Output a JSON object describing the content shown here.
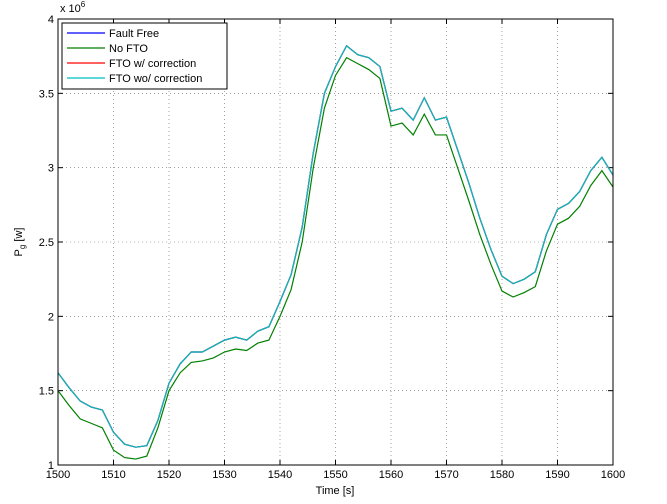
{
  "chart_data": {
    "type": "line",
    "xlabel": "Time [s]",
    "ylabel": {
      "main": "P",
      "sub": "g",
      "unit": " [w]"
    },
    "y_multiplier": {
      "base": "x 10",
      "exponent": "6"
    },
    "x": [
      1500,
      1502,
      1504,
      1506,
      1508,
      1510,
      1512,
      1514,
      1516,
      1518,
      1520,
      1522,
      1524,
      1526,
      1528,
      1530,
      1532,
      1534,
      1536,
      1538,
      1540,
      1542,
      1544,
      1546,
      1548,
      1550,
      1552,
      1554,
      1556,
      1558,
      1560,
      1562,
      1564,
      1566,
      1568,
      1570,
      1572,
      1574,
      1576,
      1578,
      1580,
      1582,
      1584,
      1586,
      1588,
      1590,
      1592,
      1594,
      1596,
      1598,
      1600
    ],
    "series": [
      {
        "name": "Fault Free",
        "color": "#0000ff",
        "values": [
          1.62,
          1.52,
          1.43,
          1.39,
          1.37,
          1.22,
          1.14,
          1.12,
          1.13,
          1.3,
          1.55,
          1.68,
          1.76,
          1.76,
          1.8,
          1.84,
          1.86,
          1.84,
          1.9,
          1.93,
          2.1,
          2.28,
          2.6,
          3.1,
          3.5,
          3.68,
          3.82,
          3.76,
          3.74,
          3.68,
          3.38,
          3.4,
          3.32,
          3.47,
          3.32,
          3.34,
          3.12,
          2.9,
          2.66,
          2.45,
          2.27,
          2.22,
          2.25,
          2.3,
          2.55,
          2.72,
          2.76,
          2.84,
          2.98,
          3.07,
          2.95
        ]
      },
      {
        "name": "No FTO",
        "color": "#008000",
        "values": [
          1.5,
          1.4,
          1.31,
          1.28,
          1.25,
          1.1,
          1.05,
          1.04,
          1.06,
          1.25,
          1.5,
          1.62,
          1.69,
          1.7,
          1.72,
          1.76,
          1.78,
          1.77,
          1.82,
          1.84,
          2.0,
          2.18,
          2.5,
          3.0,
          3.4,
          3.62,
          3.74,
          3.7,
          3.66,
          3.6,
          3.28,
          3.3,
          3.22,
          3.36,
          3.22,
          3.22,
          3.0,
          2.78,
          2.55,
          2.35,
          2.17,
          2.13,
          2.16,
          2.2,
          2.44,
          2.62,
          2.66,
          2.74,
          2.88,
          2.98,
          2.87
        ]
      },
      {
        "name": "FTO w/ correction",
        "color": "#ff0000",
        "values": [
          1.62,
          1.52,
          1.43,
          1.39,
          1.37,
          1.22,
          1.14,
          1.12,
          1.13,
          1.3,
          1.55,
          1.68,
          1.76,
          1.76,
          1.8,
          1.84,
          1.86,
          1.84,
          1.9,
          1.93,
          2.1,
          2.28,
          2.6,
          3.1,
          3.5,
          3.68,
          3.82,
          3.76,
          3.74,
          3.68,
          3.38,
          3.4,
          3.32,
          3.47,
          3.32,
          3.34,
          3.12,
          2.9,
          2.66,
          2.45,
          2.27,
          2.22,
          2.25,
          2.3,
          2.55,
          2.72,
          2.76,
          2.84,
          2.98,
          3.07,
          2.95
        ]
      },
      {
        "name": "FTO wo/ correction",
        "color": "#00bfbf",
        "values": [
          1.62,
          1.52,
          1.43,
          1.39,
          1.37,
          1.22,
          1.14,
          1.12,
          1.13,
          1.3,
          1.55,
          1.68,
          1.76,
          1.76,
          1.8,
          1.84,
          1.86,
          1.84,
          1.9,
          1.93,
          2.1,
          2.28,
          2.6,
          3.1,
          3.5,
          3.68,
          3.82,
          3.76,
          3.74,
          3.68,
          3.38,
          3.4,
          3.32,
          3.47,
          3.32,
          3.34,
          3.12,
          2.9,
          2.66,
          2.45,
          2.27,
          2.22,
          2.25,
          2.3,
          2.55,
          2.72,
          2.76,
          2.84,
          2.98,
          3.07,
          2.95
        ]
      }
    ],
    "xlim": [
      1500,
      1600
    ],
    "xticks": [
      1500,
      1510,
      1520,
      1530,
      1540,
      1550,
      1560,
      1570,
      1580,
      1590,
      1600
    ],
    "ylim": [
      1,
      4
    ],
    "yticks": [
      1,
      1.5,
      2,
      2.5,
      3,
      3.5,
      4
    ],
    "grid": true,
    "legend": "upper-left"
  }
}
